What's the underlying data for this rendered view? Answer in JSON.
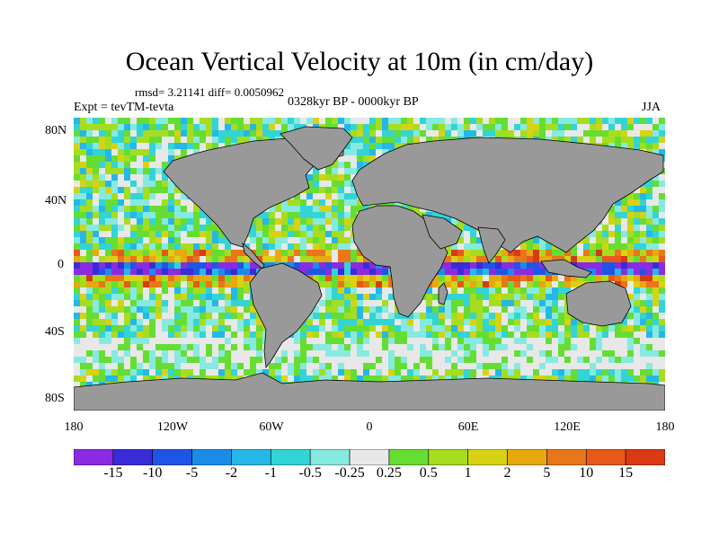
{
  "map": {
    "title": "Ocean Vertical Velocity at 10m (in cm/day)",
    "stats": "rmsd= 3.21141  diff= 0.0050962",
    "period": "0328kyr BP - 0000kyr BP",
    "experiment": "Expt = tevTM-tevta",
    "season": "JJA",
    "lat_labels": [
      "80N",
      "40N",
      "0",
      "40S",
      "80S"
    ],
    "lon_labels": [
      "180",
      "120W",
      "60W",
      "0",
      "60E",
      "120E",
      "180"
    ],
    "land_color": "#999999",
    "ocean_background": "#e8e8e8"
  },
  "colorbar": {
    "labels": [
      "-15",
      "-10",
      "-5",
      "-2",
      "-1",
      "-0.5",
      "-0.25",
      "0.25",
      "0.5",
      "1",
      "2",
      "5",
      "10",
      "15"
    ],
    "colors": [
      "#8a2be2",
      "#3a2bd8",
      "#1f55e6",
      "#1a8ce8",
      "#25b7e8",
      "#33d4d6",
      "#86eae0",
      "#e8e8e8",
      "#66dd33",
      "#a6dd1f",
      "#d8d214",
      "#e8a80f",
      "#e8761a",
      "#e8581a",
      "#d93a14"
    ]
  }
}
